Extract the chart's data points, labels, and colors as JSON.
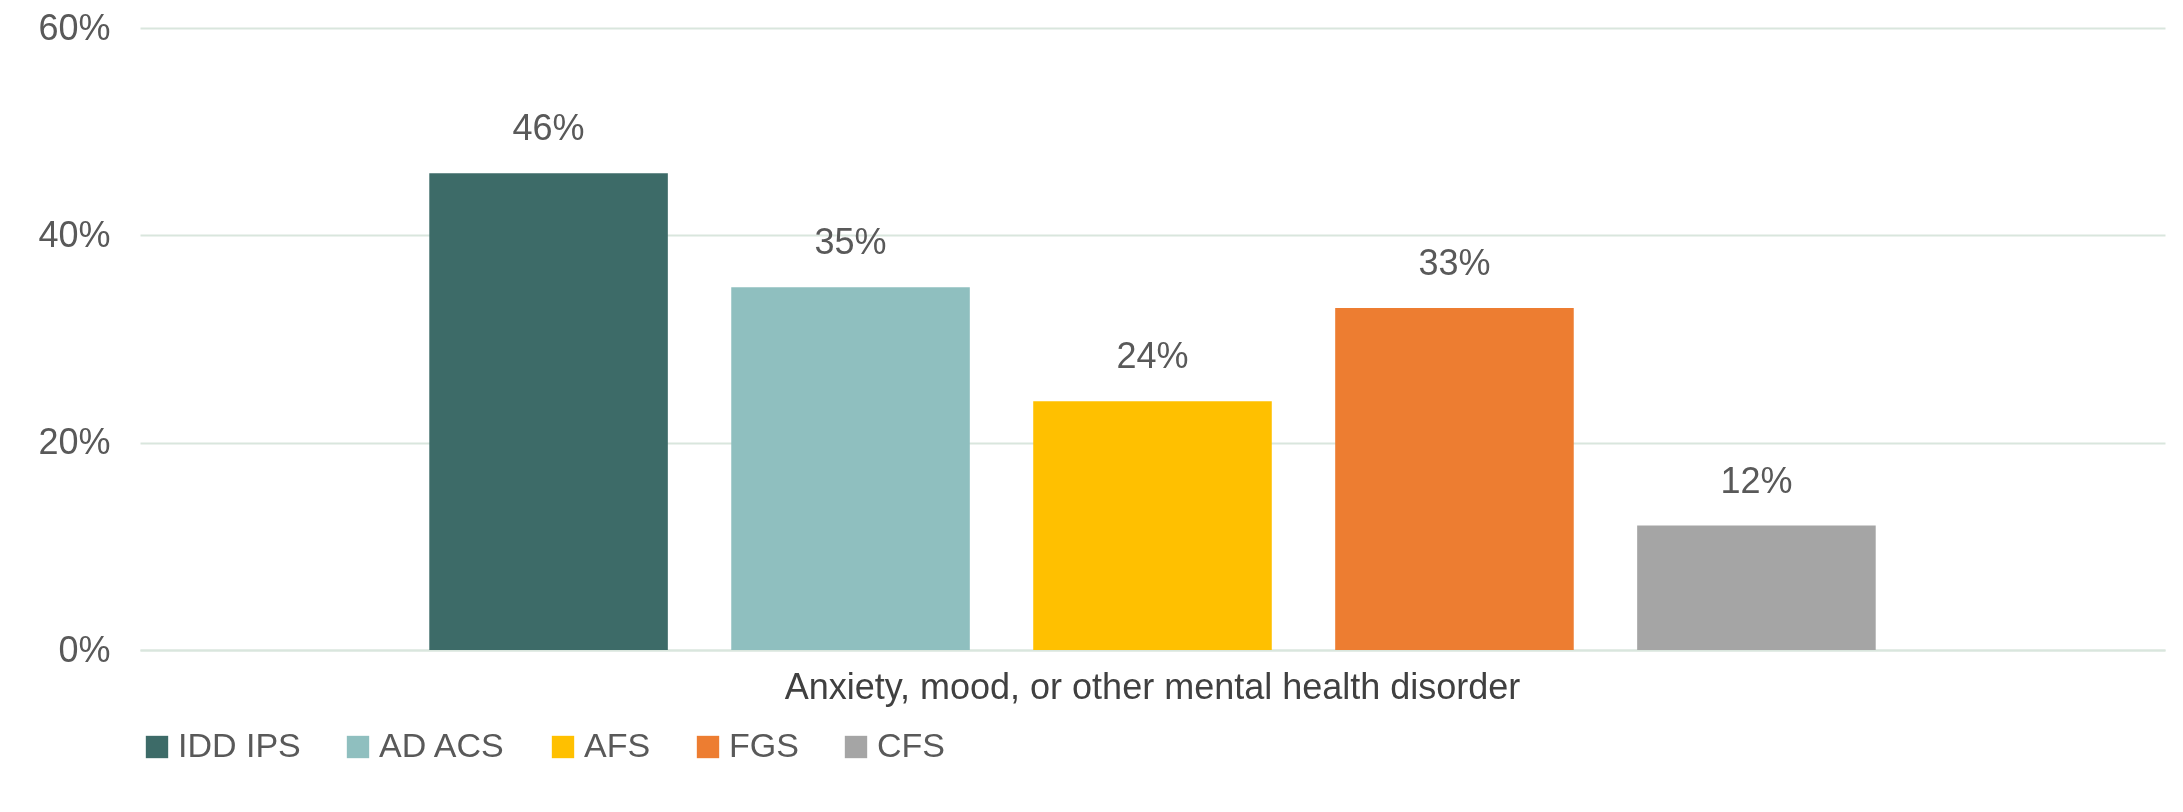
{
  "chart_data": {
    "type": "bar",
    "categories": [
      "Anxiety, mood, or other mental health disorder"
    ],
    "series": [
      {
        "name": "IDD IPS",
        "color": "#3d6b68",
        "values": [
          46
        ],
        "value_labels": [
          "46%"
        ]
      },
      {
        "name": "AD ACS",
        "color": "#8fbfbf",
        "values": [
          35
        ],
        "value_labels": [
          "35%"
        ]
      },
      {
        "name": "AFS",
        "color": "#ffc000",
        "values": [
          24
        ],
        "value_labels": [
          "24%"
        ]
      },
      {
        "name": "FGS",
        "color": "#ed7d31",
        "values": [
          33
        ],
        "value_labels": [
          "33%"
        ]
      },
      {
        "name": "CFS",
        "color": "#a5a5a5",
        "values": [
          12
        ],
        "value_labels": [
          "12%"
        ]
      }
    ],
    "ylim": [
      0,
      60
    ],
    "yticks": [
      {
        "value": 0,
        "label": "0%"
      },
      {
        "value": 20,
        "label": "20%"
      },
      {
        "value": 40,
        "label": "40%"
      },
      {
        "value": 60,
        "label": "60%"
      }
    ],
    "grid": "y",
    "legend": "bottom"
  }
}
